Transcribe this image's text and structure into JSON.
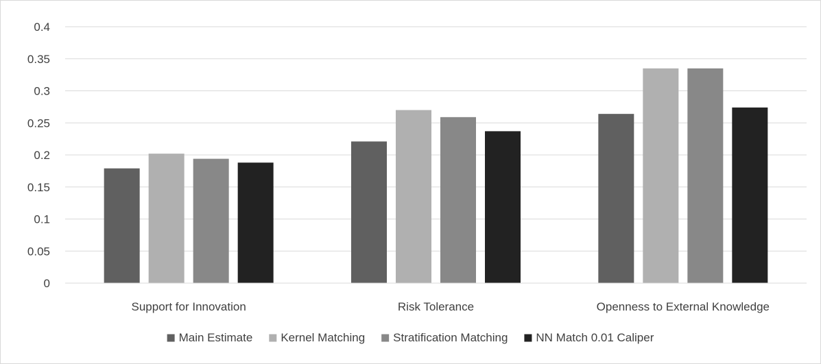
{
  "chart_data": {
    "type": "bar",
    "title": "",
    "xlabel": "",
    "ylabel": "",
    "categories": [
      "Support for Innovation",
      "Risk Tolerance",
      "Openness to External Knowledge"
    ],
    "series": [
      {
        "name": "Main Estimate",
        "color": "#606060",
        "values": [
          0.179,
          0.221,
          0.264
        ]
      },
      {
        "name": "Kernel Matching",
        "color": "#b0b0b0",
        "values": [
          0.202,
          0.27,
          0.335
        ]
      },
      {
        "name": "Stratification Matching",
        "color": "#888888",
        "values": [
          0.194,
          0.259,
          0.335
        ]
      },
      {
        "name": "NN Match 0.01 Caliper",
        "color": "#222222",
        "values": [
          0.188,
          0.237,
          0.274
        ]
      }
    ],
    "ylim": [
      0,
      0.4
    ],
    "yticks": [
      "0",
      "0.05",
      "0.1",
      "0.15",
      "0.2",
      "0.25",
      "0.3",
      "0.35",
      "0.4"
    ],
    "grid": true,
    "legend_position": "bottom"
  }
}
